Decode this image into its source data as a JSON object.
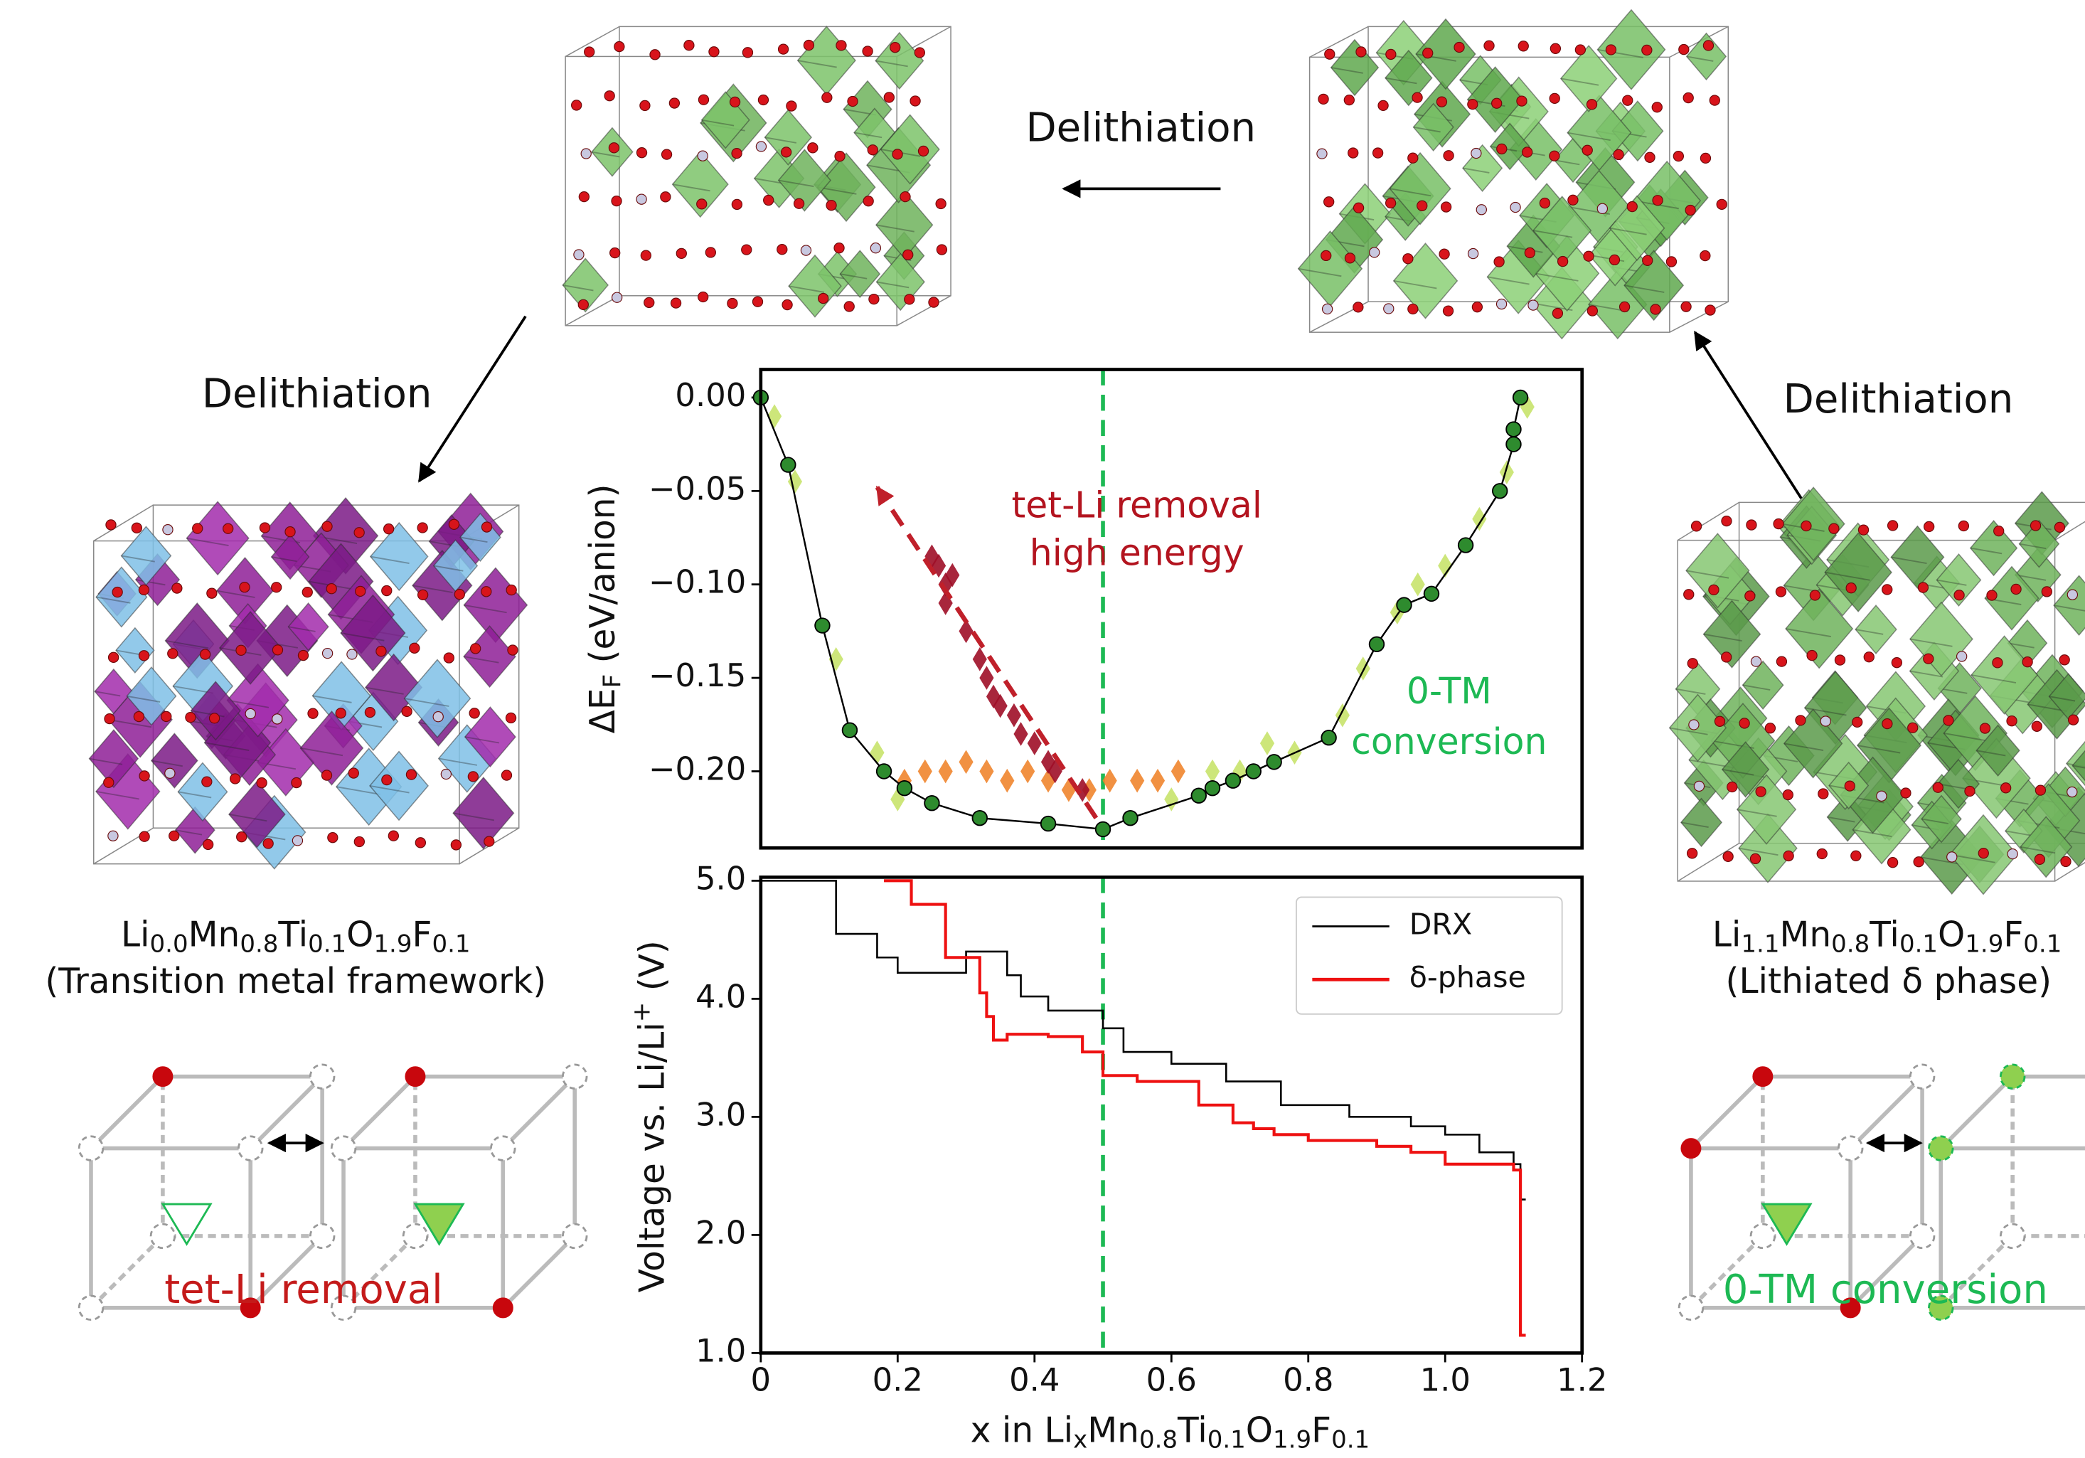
{
  "figure": {
    "arrow_labels": [
      "Delithiation",
      "Delithiation",
      "Delithiation"
    ],
    "left": {
      "formula": [
        "Li",
        "0.0",
        "Mn",
        "0.8",
        "Ti",
        "0.1",
        "O",
        "1.9",
        "F",
        "0.1"
      ],
      "caption": "(Transition metal framework)",
      "mechanism": "tet-Li removal"
    },
    "right": {
      "formula": [
        "Li",
        "1.1",
        "Mn",
        "0.8",
        "Ti",
        "0.1",
        "O",
        "1.9",
        "F",
        "0.1"
      ],
      "caption": "(Lithiated δ phase)",
      "mechanism": "0-TM conversion"
    }
  },
  "chart_data": [
    {
      "type": "line",
      "ylabel": [
        "ΔE",
        "F",
        " (eV/anion)"
      ],
      "xlim": [
        0,
        1.2
      ],
      "ylim": [
        -0.241,
        0.015
      ],
      "yticks": [
        {
          "value": 0,
          "label": "0.00"
        },
        {
          "value": -0.05,
          "label": "−0.05"
        },
        {
          "value": -0.1,
          "label": "−0.10"
        },
        {
          "value": -0.15,
          "label": "−0.15"
        },
        {
          "value": -0.2,
          "label": "−0.20"
        }
      ],
      "series": [
        {
          "mode": "markers",
          "color": "#c8e36c",
          "x": [
            0.02,
            0.05,
            0.11,
            0.17,
            0.2,
            0.6,
            0.66,
            0.7,
            0.74,
            0.78,
            0.85,
            0.88,
            0.93,
            0.96,
            1.0,
            1.05,
            1.09,
            1.12
          ],
          "values": [
            -0.01,
            -0.045,
            -0.14,
            -0.19,
            -0.215,
            -0.215,
            -0.2,
            -0.2,
            -0.185,
            -0.19,
            -0.17,
            -0.145,
            -0.115,
            -0.1,
            -0.09,
            -0.065,
            -0.04,
            -0.005
          ]
        },
        {
          "mode": "markers",
          "color": "#f0852d",
          "x": [
            0.21,
            0.24,
            0.27,
            0.3,
            0.33,
            0.36,
            0.39,
            0.42,
            0.45,
            0.48,
            0.51,
            0.55,
            0.58,
            0.61
          ],
          "values": [
            -0.205,
            -0.2,
            -0.2,
            -0.195,
            -0.2,
            -0.205,
            -0.2,
            -0.205,
            -0.21,
            -0.21,
            -0.205,
            -0.205,
            -0.205,
            -0.2
          ]
        },
        {
          "mode": "markers",
          "color": "#9e0e27",
          "x": [
            0.25,
            0.26,
            0.27,
            0.27,
            0.28,
            0.3,
            0.32,
            0.33,
            0.34,
            0.35,
            0.37,
            0.38,
            0.4,
            0.42,
            0.43,
            0.47
          ],
          "values": [
            -0.085,
            -0.09,
            -0.1,
            -0.11,
            -0.095,
            -0.125,
            -0.14,
            -0.15,
            -0.16,
            -0.165,
            -0.17,
            -0.18,
            -0.185,
            -0.195,
            -0.2,
            -0.21
          ]
        },
        {
          "mode": "lines+markers",
          "color": "#2e8b2e",
          "x": [
            0,
            0.04,
            0.09,
            0.13,
            0.18,
            0.21,
            0.25,
            0.32,
            0.42,
            0.5,
            0.54,
            0.64,
            0.66,
            0.69,
            0.72,
            0.75,
            0.83,
            0.9,
            0.94,
            0.98,
            1.03,
            1.08,
            1.1,
            1.1,
            1.11
          ],
          "values": [
            0,
            -0.036,
            -0.122,
            -0.178,
            -0.2,
            -0.209,
            -0.217,
            -0.225,
            -0.228,
            -0.231,
            -0.225,
            -0.213,
            -0.209,
            -0.205,
            -0.2,
            -0.195,
            -0.182,
            -0.132,
            -0.111,
            -0.105,
            -0.079,
            -0.05,
            -0.025,
            -0.017,
            0
          ]
        }
      ],
      "vline": {
        "x": 0.5,
        "color": "#1db954"
      },
      "arrow": {
        "x": [
          0.49,
          0.17
        ],
        "y": [
          -0.225,
          -0.048
        ],
        "color": "#c0202a"
      },
      "annotations": [
        {
          "text": "tet-Li removal",
          "color": "#b3141f"
        },
        {
          "text": "high energy",
          "color": "#b3141f"
        },
        {
          "text": "0-TM",
          "color": "#1db954"
        },
        {
          "text": "conversion",
          "color": "#1db954"
        }
      ]
    },
    {
      "type": "step",
      "ylabel": [
        "Voltage vs. Li/Li",
        "+",
        " (V)"
      ],
      "xlabel": [
        "x in Li",
        "x",
        "Mn",
        "0.8",
        "Ti",
        "0.1",
        "O",
        "1.9",
        "F",
        "0.1"
      ],
      "xlim": [
        0,
        1.2
      ],
      "ylim": [
        1.0,
        5.03
      ],
      "xticks": [
        0,
        0.2,
        0.4,
        0.6,
        0.8,
        {
          "value": 1,
          "label": "1.0"
        },
        1.2
      ],
      "yticks": [
        {
          "value": 1,
          "label": "1.0"
        },
        {
          "value": 2,
          "label": "2.0"
        },
        {
          "value": 3,
          "label": "3.0"
        },
        {
          "value": 4,
          "label": "4.0"
        },
        {
          "value": 5,
          "label": "5.0"
        }
      ],
      "series": [
        {
          "name": "DRX",
          "color": "#000000",
          "x": [
            0,
            0.11,
            0.17,
            0.2,
            0.3,
            0.36,
            0.38,
            0.42,
            0.5,
            0.53,
            0.6,
            0.68,
            0.76,
            0.86,
            0.95,
            1.0,
            1.05,
            1.1,
            1.11
          ],
          "values": [
            5.0,
            4.55,
            4.35,
            4.22,
            4.4,
            4.2,
            4.02,
            3.9,
            3.75,
            3.55,
            3.45,
            3.3,
            3.1,
            3.0,
            2.92,
            2.85,
            2.7,
            2.6,
            2.3
          ]
        },
        {
          "name": "δ-phase",
          "color": "#ee1111",
          "x": [
            0.18,
            0.22,
            0.27,
            0.32,
            0.33,
            0.34,
            0.36,
            0.42,
            0.47,
            0.5,
            0.55,
            0.64,
            0.69,
            0.72,
            0.75,
            0.8,
            0.9,
            0.95,
            1.0,
            1.1,
            1.11
          ],
          "values": [
            5.0,
            4.8,
            4.35,
            4.05,
            3.85,
            3.65,
            3.7,
            3.68,
            3.55,
            3.35,
            3.3,
            3.1,
            2.95,
            2.9,
            2.85,
            2.8,
            2.75,
            2.7,
            2.6,
            2.55,
            1.15
          ]
        }
      ],
      "vline": {
        "x": 0.5,
        "color": "#1db954"
      },
      "legend": "upper right"
    }
  ]
}
